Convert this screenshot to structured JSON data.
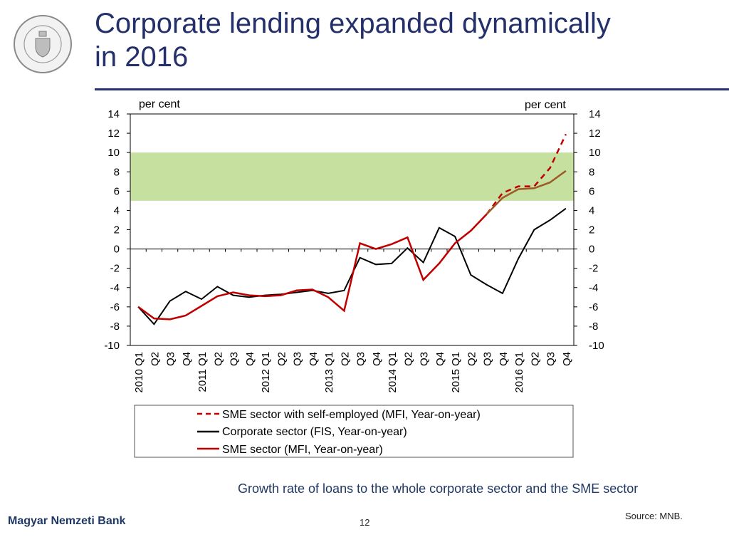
{
  "header": {
    "title_line1": "Corporate lending expanded dynamically",
    "title_line2": "in 2016",
    "logo_text": "MAGYAR NEMZETI BANK"
  },
  "caption": "Growth rate of loans to the whole corporate sector and the SME sector",
  "source": "Source: MNB.",
  "footer": {
    "brand": "Magyar Nemzeti Bank",
    "page": "12"
  },
  "colors": {
    "title": "#24306b",
    "band": "#c6e0a0",
    "sme_self": "#c00000",
    "corporate": "#000000",
    "sme": "#c00000",
    "sme_continuation": "#9c5a28"
  },
  "chart_data": {
    "type": "line",
    "ylabel_left": "per cent",
    "ylabel_right": "per cent",
    "ylim": [
      -10,
      14
    ],
    "yticks": [
      14,
      12,
      10,
      8,
      6,
      4,
      2,
      0,
      -2,
      -4,
      -6,
      -8,
      -10
    ],
    "shaded_band": [
      5,
      10
    ],
    "categories": [
      "2010 Q1",
      "Q2",
      "Q3",
      "Q4",
      "2011 Q1",
      "Q2",
      "Q3",
      "Q4",
      "2012 Q1",
      "Q2",
      "Q3",
      "Q4",
      "2013 Q1",
      "Q2",
      "Q3",
      "Q4",
      "2014 Q1",
      "Q2",
      "Q3",
      "Q4",
      "2015 Q1",
      "Q2",
      "Q3",
      "Q4",
      "2016 Q1",
      "Q2",
      "Q3",
      "Q4"
    ],
    "series": [
      {
        "name": "SME sector with self-employed (MFI, Year-on-year)",
        "style": "dashed",
        "values": [
          null,
          null,
          null,
          null,
          null,
          null,
          null,
          null,
          null,
          null,
          null,
          null,
          null,
          null,
          null,
          null,
          null,
          null,
          null,
          null,
          null,
          null,
          3.6,
          5.8,
          6.5,
          6.5,
          8.4,
          11.9
        ]
      },
      {
        "name": "Corporate sector (FIS, Year-on-year)",
        "style": "solid",
        "values": [
          -6.0,
          -7.8,
          -5.4,
          -4.4,
          -5.2,
          -3.9,
          -4.8,
          -5.0,
          -4.8,
          -4.7,
          -4.5,
          -4.3,
          -4.6,
          -4.3,
          -0.9,
          -1.6,
          -1.5,
          0.1,
          -1.4,
          2.2,
          1.3,
          -2.7,
          -3.7,
          -4.6,
          -1.0,
          2.0,
          3.0,
          4.2
        ]
      },
      {
        "name": "SME sector (MFI, Year-on-year)",
        "style": "solid",
        "values": [
          -6.0,
          -7.2,
          -7.3,
          -6.9,
          -5.9,
          -4.9,
          -4.5,
          -4.8,
          -4.9,
          -4.8,
          -4.3,
          -4.2,
          -5.0,
          -6.4,
          0.6,
          0.0,
          0.5,
          1.2,
          -3.2,
          -1.5,
          0.6,
          1.9,
          3.6,
          5.3,
          6.2,
          6.3,
          6.9,
          8.1
        ]
      }
    ]
  }
}
